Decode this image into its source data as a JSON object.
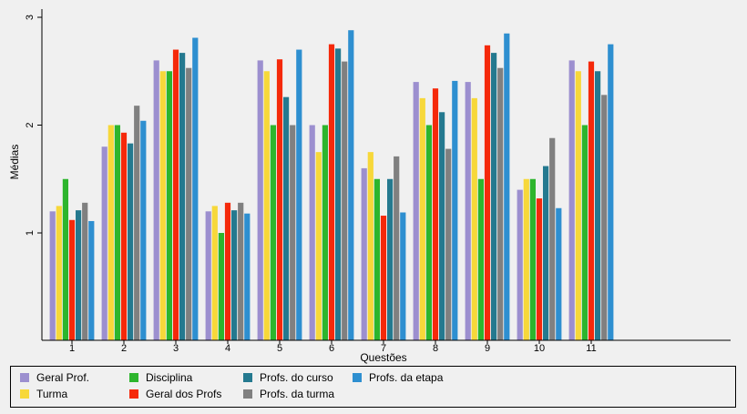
{
  "chart_data": {
    "type": "bar",
    "xlabel": "Questões",
    "ylabel": "Médias",
    "ylim": [
      0.02,
      3.1
    ],
    "yticks": [
      1,
      2,
      3
    ],
    "categories": [
      "1",
      "2",
      "3",
      "4",
      "5",
      "6",
      "7",
      "8",
      "9",
      "10",
      "11"
    ],
    "legend_position": "bottom",
    "series": [
      {
        "name": "Geral Prof.",
        "color": "#9c8fcf",
        "values": [
          1.2,
          1.8,
          2.6,
          1.2,
          2.6,
          2.0,
          1.6,
          2.4,
          2.4,
          1.4,
          2.6
        ]
      },
      {
        "name": "Turma",
        "color": "#f7d83a",
        "values": [
          1.25,
          2.0,
          2.5,
          1.25,
          2.5,
          1.75,
          1.75,
          2.25,
          2.25,
          1.5,
          2.5
        ]
      },
      {
        "name": "Disciplina",
        "color": "#2db52d",
        "values": [
          1.5,
          2.0,
          2.5,
          1.0,
          2.0,
          2.0,
          1.5,
          2.0,
          1.5,
          1.5,
          2.0
        ]
      },
      {
        "name": "Geral dos Profs",
        "color": "#f5290a",
        "values": [
          1.12,
          1.93,
          2.7,
          1.28,
          2.61,
          2.75,
          1.16,
          2.34,
          2.74,
          1.32,
          2.59
        ]
      },
      {
        "name": "Profs. do curso",
        "color": "#24798f",
        "values": [
          1.21,
          1.83,
          2.67,
          1.21,
          2.26,
          2.71,
          1.5,
          2.12,
          2.67,
          1.62,
          2.5
        ]
      },
      {
        "name": "Profs. da turma",
        "color": "#808080",
        "values": [
          1.28,
          2.18,
          2.53,
          1.28,
          2.0,
          2.59,
          1.71,
          1.78,
          2.53,
          1.88,
          2.28
        ]
      },
      {
        "name": "Profs. da etapa",
        "color": "#2e8fd0",
        "values": [
          1.11,
          2.04,
          2.81,
          1.18,
          2.7,
          2.88,
          1.19,
          2.41,
          2.85,
          1.23,
          2.75
        ]
      }
    ]
  }
}
